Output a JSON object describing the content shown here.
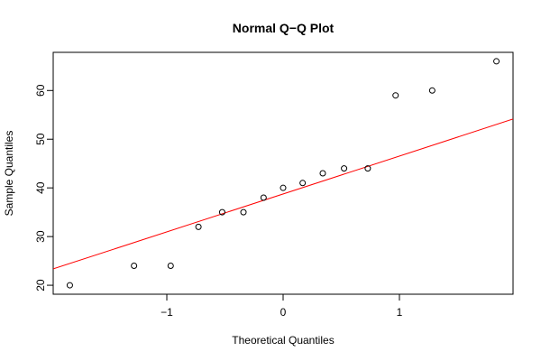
{
  "chart_data": {
    "type": "scatter",
    "title": "Normal Q−Q Plot",
    "x_label": "Theoretical Quantiles",
    "y_label": "Sample Quantiles",
    "x": [
      -1.834,
      -1.282,
      -0.967,
      -0.728,
      -0.524,
      -0.341,
      -0.168,
      0,
      0.168,
      0.341,
      0.524,
      0.728,
      0.967,
      1.282,
      1.834
    ],
    "values": [
      20,
      24,
      24,
      32,
      35,
      35,
      38,
      40,
      41,
      43,
      44,
      44,
      59,
      60,
      66
    ],
    "color": "#000000",
    "qqline": {
      "intercept": 38.75,
      "slope": 7.784,
      "color": "#ff0000"
    },
    "xlim": [
      -1.977,
      1.977
    ],
    "ylim": [
      18.16,
      67.84
    ],
    "xticks": [
      {
        "value": -1,
        "label": "−1"
      },
      0,
      1
    ],
    "yticks": [
      20,
      30,
      40,
      50,
      60
    ]
  }
}
